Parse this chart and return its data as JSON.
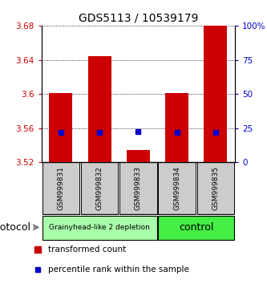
{
  "title": "GDS5113 / 10539179",
  "samples": [
    "GSM999831",
    "GSM999832",
    "GSM999833",
    "GSM999834",
    "GSM999835"
  ],
  "bar_bottom": [
    3.52,
    3.52,
    3.52,
    3.52,
    3.52
  ],
  "bar_top": [
    3.601,
    3.645,
    3.535,
    3.601,
    3.682
  ],
  "blue_values": [
    3.555,
    3.555,
    3.556,
    3.555,
    3.555
  ],
  "ylim": [
    3.52,
    3.68
  ],
  "yticks_left": [
    3.52,
    3.56,
    3.6,
    3.64,
    3.68
  ],
  "yticks_right": [
    0,
    25,
    50,
    75,
    100
  ],
  "ytick_labels_right": [
    "0",
    "25",
    "50",
    "75",
    "100%"
  ],
  "bar_color": "#cc0000",
  "blue_color": "#0000cc",
  "group0_label": "Grainyhead-like 2 depletion",
  "group0_color": "#aaffaa",
  "group1_label": "control",
  "group1_color": "#44ee44",
  "protocol_label": "protocol",
  "background_color": "#ffffff",
  "tick_label_gray_bg": "#cccccc",
  "bar_width": 0.6,
  "legend_red_label": "transformed count",
  "legend_blue_label": "percentile rank within the sample"
}
